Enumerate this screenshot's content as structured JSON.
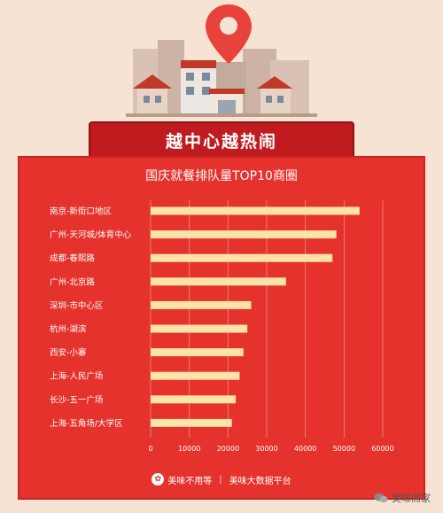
{
  "banner": {
    "title": "越中心越热闹"
  },
  "footer": {
    "brand": "美味不用等",
    "platform": "美味大数据平台"
  },
  "watermark": {
    "text": "美味商家"
  },
  "colors": {
    "panel": "#e5322d",
    "bar": "#fde3a7",
    "banner": "#c01b1e",
    "background": "#f7e3d3"
  },
  "chart_data": {
    "type": "bar",
    "orientation": "horizontal",
    "title": "国庆就餐排队量TOP10商圈",
    "categories": [
      "南京-新街口地区",
      "广州-天河城/体育中心",
      "成都-春熙路",
      "广州-北京路",
      "深圳-市中心区",
      "杭州-湖滨",
      "西安-小寨",
      "上海-人民广场",
      "长沙-五一广场",
      "上海-五角场/大学区"
    ],
    "values": [
      54000,
      48000,
      47000,
      35000,
      26000,
      25000,
      24000,
      23000,
      22000,
      21000
    ],
    "xlim": [
      0,
      60000
    ],
    "xticks": [
      0,
      10000,
      20000,
      30000,
      40000,
      50000,
      60000
    ],
    "grid": true,
    "legend": "none"
  }
}
